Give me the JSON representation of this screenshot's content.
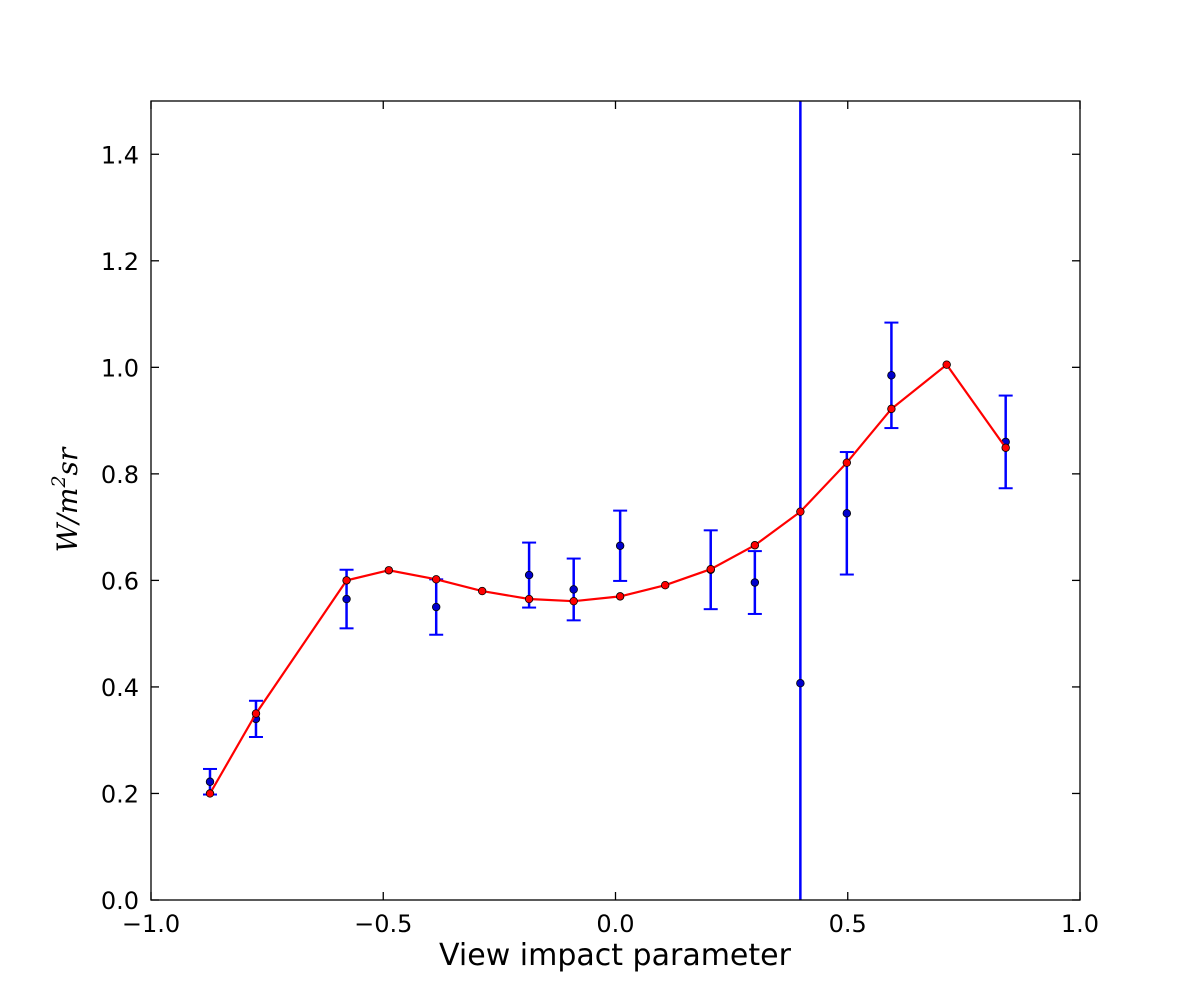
{
  "chart_data": {
    "type": "line",
    "title": "",
    "xlabel": "View impact parameter",
    "ylabel": {
      "base": "W/m",
      "sup": "2",
      "tail": "sr"
    },
    "xlim": [
      -1.0,
      1.0
    ],
    "ylim": [
      0.0,
      1.5
    ],
    "x_tick_labels": [
      "−1.0",
      "−0.5",
      "0.0",
      "0.5",
      "1.0"
    ],
    "y_tick_labels": [
      "0.0",
      "0.2",
      "0.4",
      "0.6",
      "0.8",
      "1.0",
      "1.2",
      "1.4"
    ],
    "grid": false,
    "series": [
      {
        "kind": "errorbar",
        "color": "#0000ff",
        "marker_color": "#0000cc",
        "points": [
          {
            "x": -0.873,
            "y": 0.222,
            "err": 0.024
          },
          {
            "x": -0.774,
            "y": 0.34,
            "err": 0.034
          },
          {
            "x": -0.579,
            "y": 0.565,
            "err": 0.055
          },
          {
            "x": -0.386,
            "y": 0.55,
            "err": 0.052
          },
          {
            "x": -0.186,
            "y": 0.61,
            "err": 0.061
          },
          {
            "x": -0.09,
            "y": 0.583,
            "err": 0.058
          },
          {
            "x": 0.01,
            "y": 0.665,
            "err": 0.066
          },
          {
            "x": 0.205,
            "y": 0.62,
            "err": 0.074
          },
          {
            "x": 0.3,
            "y": 0.596,
            "err": 0.059
          },
          {
            "x": 0.398,
            "y": 0.407,
            "err": 1.2
          },
          {
            "x": 0.498,
            "y": 0.726,
            "err": 0.115
          },
          {
            "x": 0.594,
            "y": 0.985,
            "err": 0.099
          },
          {
            "x": 0.84,
            "y": 0.86,
            "err": 0.087
          }
        ]
      },
      {
        "kind": "line",
        "color": "#ff0000",
        "marker_color": "#ff0000",
        "points": [
          {
            "x": -0.873,
            "y": 0.2
          },
          {
            "x": -0.774,
            "y": 0.35
          },
          {
            "x": -0.579,
            "y": 0.6
          },
          {
            "x": -0.488,
            "y": 0.619
          },
          {
            "x": -0.386,
            "y": 0.602
          },
          {
            "x": -0.287,
            "y": 0.58
          },
          {
            "x": -0.186,
            "y": 0.565
          },
          {
            "x": -0.09,
            "y": 0.561
          },
          {
            "x": 0.01,
            "y": 0.57
          },
          {
            "x": 0.107,
            "y": 0.591
          },
          {
            "x": 0.205,
            "y": 0.621
          },
          {
            "x": 0.3,
            "y": 0.666
          },
          {
            "x": 0.398,
            "y": 0.729
          },
          {
            "x": 0.498,
            "y": 0.821
          },
          {
            "x": 0.594,
            "y": 0.922
          },
          {
            "x": 0.713,
            "y": 1.005
          },
          {
            "x": 0.84,
            "y": 0.849
          }
        ]
      }
    ]
  }
}
